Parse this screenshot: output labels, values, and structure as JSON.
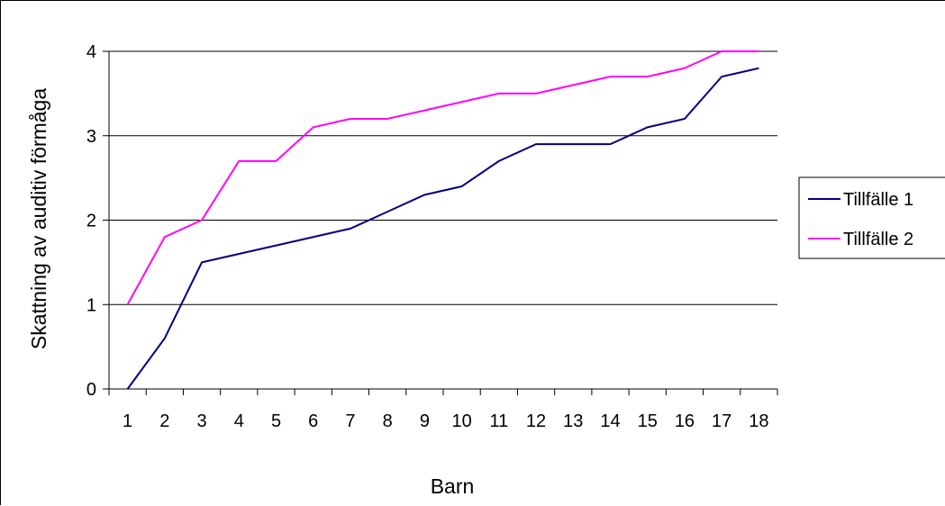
{
  "chart_data": {
    "type": "line",
    "title": "",
    "xlabel": "Barn",
    "ylabel": "Skattning av auditiv förmåga",
    "categories": [
      "1",
      "2",
      "3",
      "4",
      "5",
      "6",
      "7",
      "8",
      "9",
      "10",
      "11",
      "12",
      "13",
      "14",
      "15",
      "16",
      "17",
      "18"
    ],
    "y_ticks": [
      "0",
      "1",
      "2",
      "3",
      "4"
    ],
    "ylim": [
      0,
      4
    ],
    "grid": true,
    "legend_position": "right",
    "series": [
      {
        "name": "Tillfälle 1",
        "color": "#000080",
        "values": [
          0,
          0.6,
          1.5,
          1.6,
          1.7,
          1.8,
          1.9,
          2.1,
          2.3,
          2.4,
          2.7,
          2.9,
          2.9,
          2.9,
          3.1,
          3.2,
          3.7,
          3.8
        ]
      },
      {
        "name": "Tillfälle 2",
        "color": "#FF00FF",
        "values": [
          1,
          1.8,
          2.0,
          2.7,
          2.7,
          3.1,
          3.2,
          3.2,
          3.3,
          3.4,
          3.5,
          3.5,
          3.6,
          3.7,
          3.7,
          3.8,
          4.0,
          4.0
        ]
      }
    ]
  }
}
